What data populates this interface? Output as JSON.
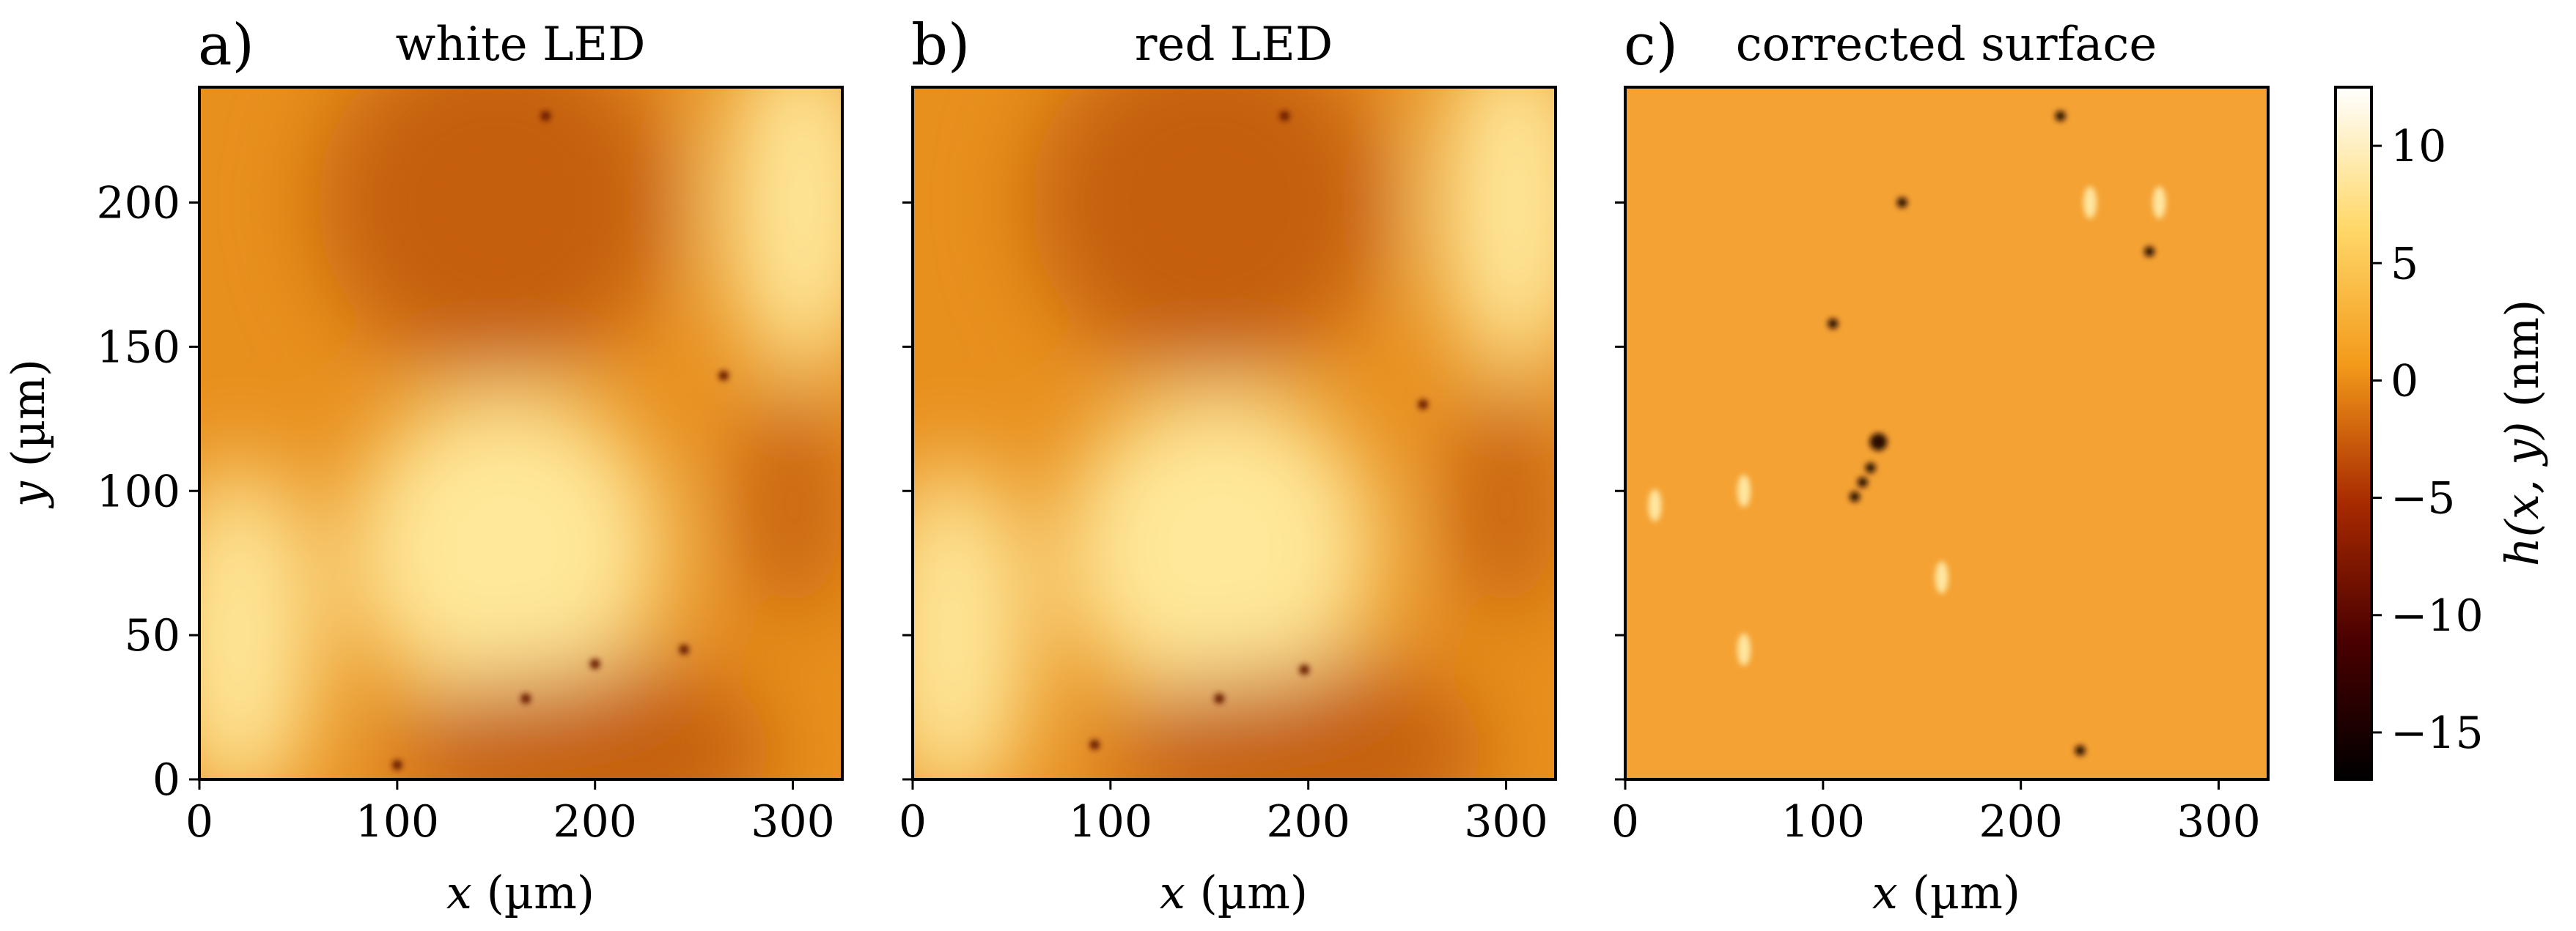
{
  "chart_data": {
    "type": "heatmap",
    "figure_layout": "three panels sharing one colorbar",
    "panels": [
      {
        "panel_label": "a)",
        "title": "white LED",
        "description": "raw height map; strong low-frequency variation",
        "xlabel_var": "x",
        "xlabel_unit": " (µm)",
        "ylabel_var": "y",
        "ylabel_unit": " (µm)",
        "xlim": [
          0,
          325
        ],
        "ylim": [
          0,
          240
        ],
        "xticks": [
          0,
          100,
          200,
          300
        ],
        "yticks": [
          0,
          50,
          100,
          150,
          200
        ],
        "xtick_labels": [
          "0",
          "100",
          "200",
          "300"
        ],
        "ytick_labels": [
          "0",
          "50",
          "100",
          "150",
          "200"
        ]
      },
      {
        "panel_label": "b)",
        "title": "red LED",
        "description": "raw height map; nearly identical pattern to white LED",
        "xlabel_var": "x",
        "xlabel_unit": " (µm)",
        "xlim": [
          0,
          325
        ],
        "ylim": [
          0,
          240
        ],
        "xticks": [
          0,
          100,
          200,
          300
        ],
        "yticks": [
          0,
          50,
          100,
          150,
          200
        ],
        "xtick_labels": [
          "0",
          "100",
          "200",
          "300"
        ]
      },
      {
        "panel_label": "c)",
        "title": "corrected surface",
        "description": "flat corrected map around 0 nm with small defects",
        "xlabel_var": "x",
        "xlabel_unit": " (µm)",
        "xlim": [
          0,
          325
        ],
        "ylim": [
          0,
          240
        ],
        "xticks": [
          0,
          100,
          200,
          300
        ],
        "yticks": [
          0,
          50,
          100,
          150,
          200
        ],
        "xtick_labels": [
          "0",
          "100",
          "200",
          "300"
        ]
      }
    ],
    "colorbar": {
      "label_prefix": "h(x, y)",
      "label_unit": " (nm)",
      "range": [
        -17,
        12.5
      ],
      "ticks": [
        10,
        5,
        0,
        -5,
        -10,
        -15
      ],
      "tick_labels": [
        "10",
        "5",
        "0",
        "−5",
        "−10",
        "−15"
      ],
      "colormap": "afmhot"
    },
    "features": {
      "white_led": {
        "bright_regions": [
          [
            155,
            80,
            80,
            55
          ],
          [
            305,
            200,
            40,
            60
          ],
          [
            20,
            50,
            40,
            60
          ]
        ],
        "dark_regions": [
          [
            150,
            200,
            90,
            60
          ],
          [
            220,
            10,
            70,
            30
          ],
          [
            160,
            10,
            60,
            25
          ],
          [
            300,
            95,
            25,
            40
          ]
        ],
        "defects": [
          [
            175,
            230
          ],
          [
            200,
            40
          ],
          [
            165,
            28
          ],
          [
            100,
            5
          ],
          [
            265,
            140
          ],
          [
            245,
            45
          ]
        ]
      },
      "red_led": {
        "bright_regions": [
          [
            155,
            80,
            80,
            55
          ],
          [
            305,
            200,
            40,
            60
          ],
          [
            20,
            50,
            40,
            60
          ]
        ],
        "dark_regions": [
          [
            150,
            200,
            90,
            60
          ],
          [
            220,
            10,
            70,
            30
          ],
          [
            160,
            10,
            60,
            25
          ],
          [
            300,
            95,
            25,
            40
          ]
        ],
        "defects": [
          [
            188,
            230
          ],
          [
            198,
            38
          ],
          [
            155,
            28
          ],
          [
            92,
            12
          ],
          [
            258,
            130
          ]
        ]
      },
      "corrected": {
        "defects": [
          [
            128,
            117
          ],
          [
            124,
            108
          ],
          [
            120,
            103
          ],
          [
            116,
            98
          ],
          [
            105,
            158
          ],
          [
            230,
            10
          ],
          [
            220,
            230
          ],
          [
            265,
            183
          ],
          [
            140,
            200
          ]
        ],
        "light_spots": [
          [
            15,
            95
          ],
          [
            60,
            100
          ],
          [
            60,
            45
          ],
          [
            270,
            200
          ],
          [
            235,
            200
          ],
          [
            160,
            70
          ]
        ]
      }
    }
  }
}
